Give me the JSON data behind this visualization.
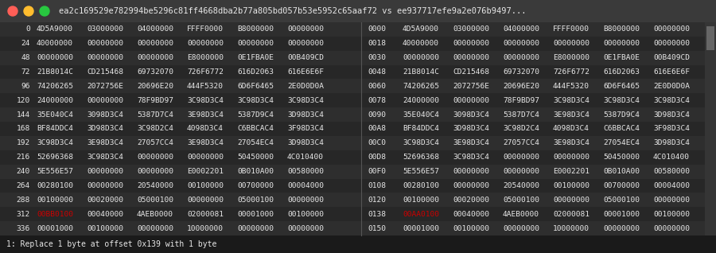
{
  "title": "ea2c169529e782994be5296c81ff4668dba2b77a805bd057b53e5952c65aaf72 vs ee937717efe9a2e076b9497...",
  "bg_color": "#2b2b2b",
  "title_bar_color": "#3a3a3a",
  "text_color": "#e8e8e8",
  "highlight_color": "#cc0000",
  "arrow_color": "#cc2222",
  "status_bar_color": "#1a1a1a",
  "status_text": "1: Replace 1 byte at offset 0x139 with 1 byte",
  "left_rows": [
    {
      "offset": "0",
      "data": [
        "4D5A9000",
        "03000000",
        "04000000",
        "FFFF0000",
        "B8000000",
        "00000000"
      ],
      "hl": []
    },
    {
      "offset": "24",
      "data": [
        "40000000",
        "00000000",
        "00000000",
        "00000000",
        "00000000",
        "00000000"
      ],
      "hl": []
    },
    {
      "offset": "48",
      "data": [
        "00000000",
        "00000000",
        "00000000",
        "E8000000",
        "0E1FBA0E",
        "00B409CD"
      ],
      "hl": []
    },
    {
      "offset": "72",
      "data": [
        "21B8014C",
        "CD215468",
        "69732070",
        "726F6772",
        "616D2063",
        "616E6E6F"
      ],
      "hl": []
    },
    {
      "offset": "96",
      "data": [
        "74206265",
        "2072756E",
        "20696E20",
        "444F5320",
        "6D6F6465",
        "2E0D0D0A"
      ],
      "hl": []
    },
    {
      "offset": "120",
      "data": [
        "24000000",
        "00000000",
        "78F9BD97",
        "3C98D3C4",
        "3C98D3C4",
        "3C98D3C4"
      ],
      "hl": []
    },
    {
      "offset": "144",
      "data": [
        "35E040C4",
        "3098D3C4",
        "5387D7C4",
        "3E98D3C4",
        "5387D9C4",
        "3D98D3C4"
      ],
      "hl": []
    },
    {
      "offset": "168",
      "data": [
        "BF84DDC4",
        "3D98D3C4",
        "3C98D2C4",
        "4098D3C4",
        "C6BBCAC4",
        "3F98D3C4"
      ],
      "hl": []
    },
    {
      "offset": "192",
      "data": [
        "3C98D3C4",
        "3E98D3C4",
        "27057CC4",
        "3E98D3C4",
        "27054EC4",
        "3D98D3C4"
      ],
      "hl": []
    },
    {
      "offset": "216",
      "data": [
        "52696368",
        "3C98D3C4",
        "00000000",
        "00000000",
        "50450000",
        "4C010400"
      ],
      "hl": []
    },
    {
      "offset": "240",
      "data": [
        "5E556E57",
        "00000000",
        "00000000",
        "E0002201",
        "0B010A00",
        "00580000"
      ],
      "hl": []
    },
    {
      "offset": "264",
      "data": [
        "00280100",
        "00000000",
        "20540000",
        "00100000",
        "00700000",
        "00004000"
      ],
      "hl": []
    },
    {
      "offset": "288",
      "data": [
        "00100000",
        "00020000",
        "05000100",
        "00000000",
        "05000100",
        "00000000"
      ],
      "hl": []
    },
    {
      "offset": "312",
      "data": [
        "00BB0100",
        "00040000",
        "4AEB0000",
        "02000081",
        "00001000",
        "00100000"
      ],
      "hl": [
        0
      ]
    },
    {
      "offset": "336",
      "data": [
        "00001000",
        "00100000",
        "00000000",
        "10000000",
        "00000000",
        "00000000"
      ],
      "hl": []
    }
  ],
  "right_rows": [
    {
      "offset": "0000",
      "data": [
        "4D5A9000",
        "03000000",
        "04000000",
        "FFFF0000",
        "B8000000",
        "00000000"
      ],
      "hl": []
    },
    {
      "offset": "0018",
      "data": [
        "40000000",
        "00000000",
        "00000000",
        "00000000",
        "00000000",
        "00000000"
      ],
      "hl": []
    },
    {
      "offset": "0030",
      "data": [
        "00000000",
        "00000000",
        "00000000",
        "E8000000",
        "0E1FBA0E",
        "00B409CD"
      ],
      "hl": []
    },
    {
      "offset": "0048",
      "data": [
        "21B8014C",
        "CD215468",
        "69732070",
        "726F6772",
        "616D2063",
        "616E6E6F"
      ],
      "hl": []
    },
    {
      "offset": "0060",
      "data": [
        "74206265",
        "2072756E",
        "20696E20",
        "444F5320",
        "6D6F6465",
        "2E0D0D0A"
      ],
      "hl": []
    },
    {
      "offset": "0078",
      "data": [
        "24000000",
        "00000000",
        "78F9BD97",
        "3C98D3C4",
        "3C98D3C4",
        "3C98D3C4"
      ],
      "hl": []
    },
    {
      "offset": "0090",
      "data": [
        "35E040C4",
        "3098D3C4",
        "5387D7C4",
        "3E98D3C4",
        "5387D9C4",
        "3D98D3C4"
      ],
      "hl": []
    },
    {
      "offset": "00A8",
      "data": [
        "BF84DDC4",
        "3D98D3C4",
        "3C98D2C4",
        "4098D3C4",
        "C6BBCAC4",
        "3F98D3C4"
      ],
      "hl": []
    },
    {
      "offset": "00C0",
      "data": [
        "3C98D3C4",
        "3E98D3C4",
        "27057CC4",
        "3E98D3C4",
        "27054EC4",
        "3D98D3C4"
      ],
      "hl": []
    },
    {
      "offset": "00D8",
      "data": [
        "52696368",
        "3C98D3C4",
        "00000000",
        "00000000",
        "50450000",
        "4C010400"
      ],
      "hl": []
    },
    {
      "offset": "00F0",
      "data": [
        "5E556E57",
        "00000000",
        "00000000",
        "E0002201",
        "0B010A00",
        "00580000"
      ],
      "hl": []
    },
    {
      "offset": "0108",
      "data": [
        "00280100",
        "00000000",
        "20540000",
        "00100000",
        "00700000",
        "00004000"
      ],
      "hl": []
    },
    {
      "offset": "0120",
      "data": [
        "00100000",
        "00020000",
        "05000100",
        "00000000",
        "05000100",
        "00000000"
      ],
      "hl": []
    },
    {
      "offset": "0138",
      "data": [
        "00AA0100",
        "00040000",
        "4AEB0000",
        "02000081",
        "00001000",
        "00100000"
      ],
      "hl": [
        0
      ]
    },
    {
      "offset": "0150",
      "data": [
        "00001000",
        "00100000",
        "00000000",
        "10000000",
        "00000000",
        "00000000"
      ],
      "hl": []
    }
  ],
  "traffic_lights": [
    {
      "color": "#ff5f57"
    },
    {
      "color": "#ffbd2e"
    },
    {
      "color": "#28c840"
    }
  ]
}
